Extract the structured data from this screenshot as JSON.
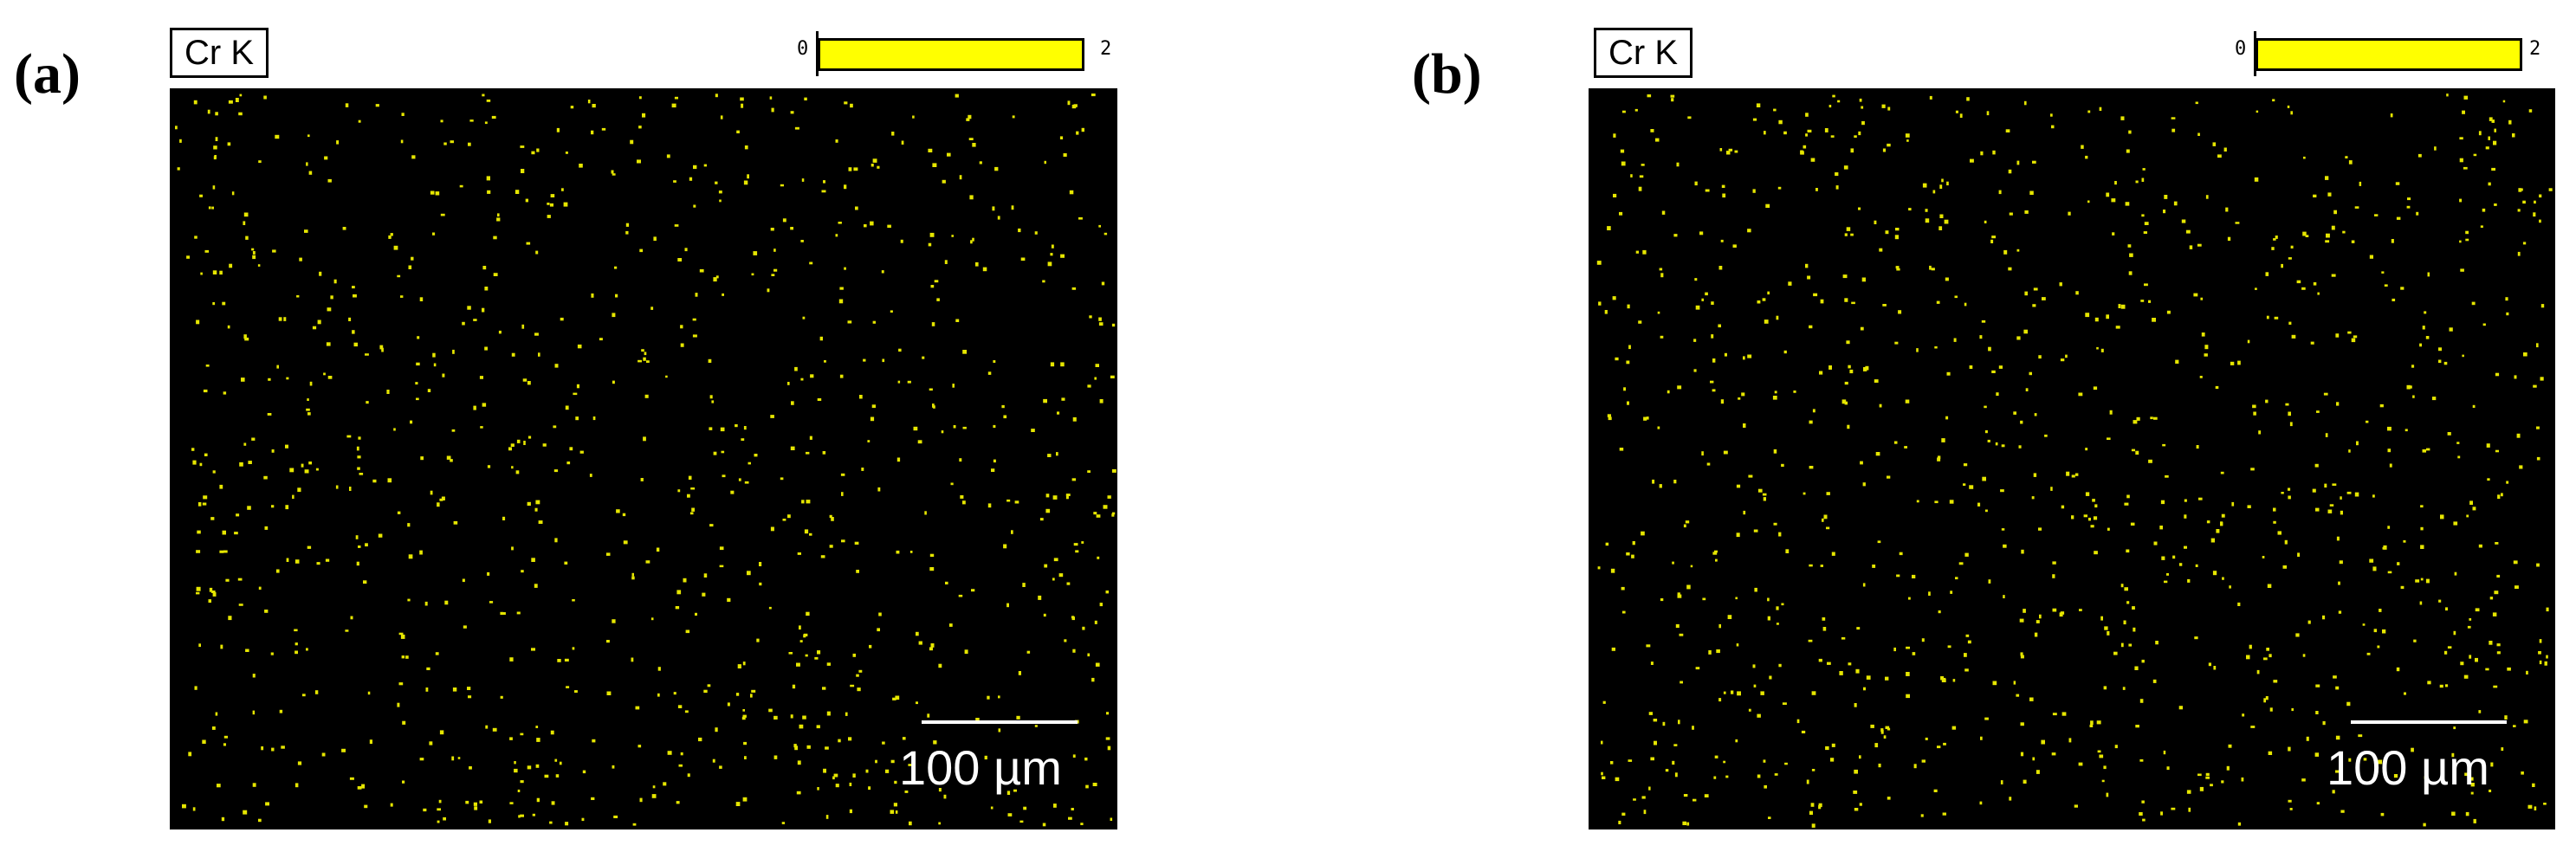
{
  "panels": [
    {
      "label": "(a)",
      "element": "Cr K",
      "scale_min": "0",
      "scale_max": "2",
      "scale_bar": "100 µm",
      "dot_color": "#e6e600",
      "dot_count": 900,
      "seed": 11
    },
    {
      "label": "(b)",
      "element": "Cr K",
      "scale_min": "0",
      "scale_max": "2",
      "scale_bar": "100 µm",
      "dot_color": "#e6e600",
      "dot_count": 1000,
      "seed": 29
    }
  ],
  "colors": {
    "map_background": "#000000",
    "colorbar": "#ffff00",
    "scale_bar": "#ffffff"
  }
}
